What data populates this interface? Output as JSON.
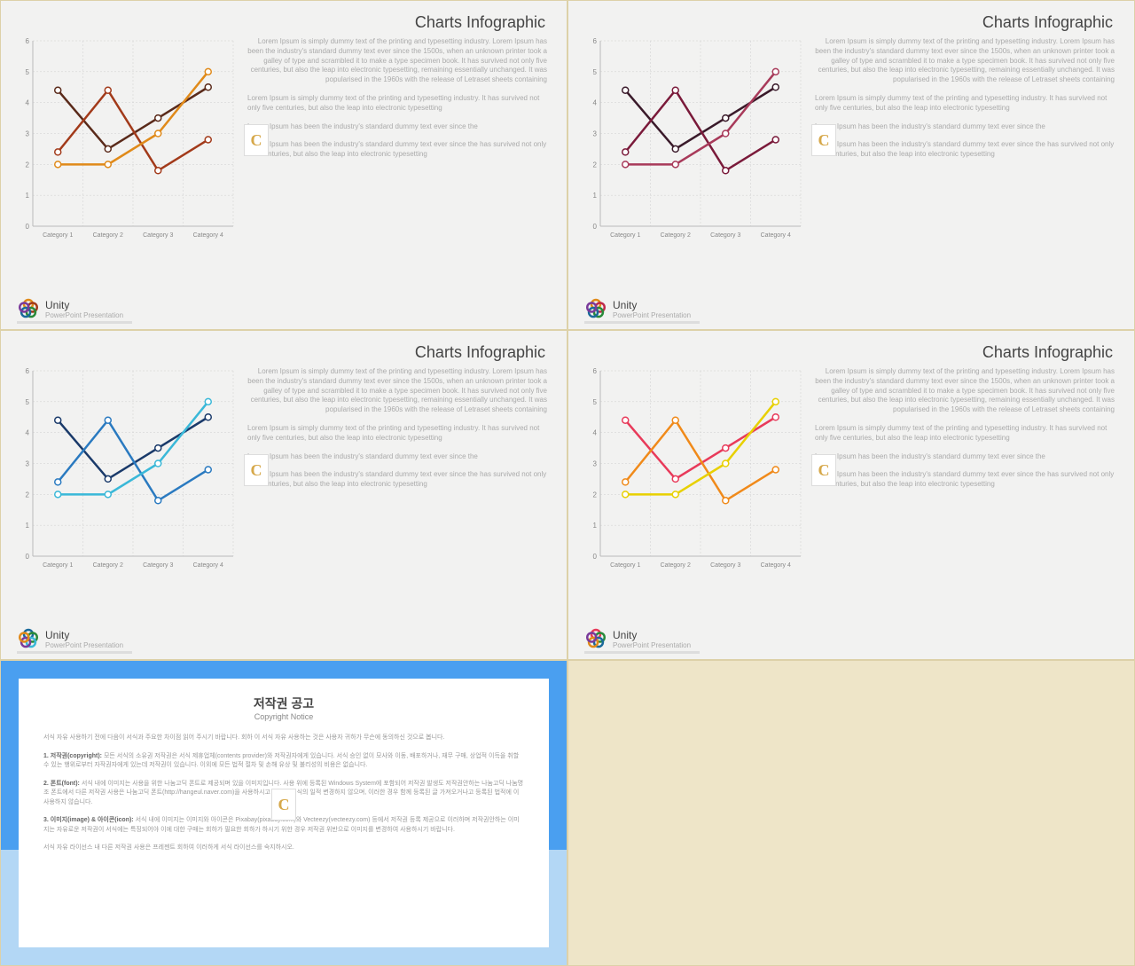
{
  "page_bg": "#eee5c8",
  "panel_bg": "#f2f2f1",
  "text_color": "#aaaaaa",
  "title_color": "#444444",
  "panel_title": "Charts Infographic",
  "brand": "Unity",
  "brand_sub": "PowerPoint Presentation",
  "body_text": {
    "p1": "Lorem Ipsum is simply dummy text of the printing and typesetting industry. Lorem Ipsum has been the industry's standard dummy text ever since the 1500s, when an unknown printer took a galley of type and scrambled it to make a type specimen book. It has survived not only five centuries, but also the leap into electronic typesetting, remaining essentially unchanged. It was popularised in the 1960s with the release of Letraset sheets containing",
    "p2": "Lorem Ipsum is simply dummy text of the printing and typesetting industry. It has survived not only five centuries, but also the leap into electronic typesetting",
    "p3": "Lorem Ipsum has been the industry's standard dummy text ever since the",
    "p4": "Lorem Ipsum has been the industry's standard dummy text ever since the has survived not only five centuries, but also the leap into electronic typesetting"
  },
  "chart_common": {
    "categories": [
      "Category 1",
      "Category 2",
      "Category 3",
      "Category 4"
    ],
    "y_ticks": [
      0,
      1,
      2,
      3,
      4,
      5,
      6
    ],
    "ylim": [
      0,
      6
    ],
    "grid_color": "#cfcfcf",
    "axis_color": "#bbbbbb",
    "plot_bg": "#f2f2f1",
    "marker_radius": 3.5,
    "line_width": 2.5,
    "label_fontsize": 8,
    "series_data": {
      "s1": [
        4.4,
        2.5,
        3.5,
        4.5
      ],
      "s2": [
        2.4,
        4.4,
        1.8,
        2.8
      ],
      "s3": [
        2.0,
        2.0,
        3.0,
        5.0
      ]
    }
  },
  "panels": [
    {
      "colors": [
        "#5a2a1a",
        "#a23a1a",
        "#e08a1a"
      ]
    },
    {
      "colors": [
        "#3a1a2a",
        "#7a1a3a",
        "#a83a5a"
      ]
    },
    {
      "colors": [
        "#1a3a6a",
        "#2a7ac0",
        "#3ab8d8"
      ]
    },
    {
      "colors": [
        "#e83a5a",
        "#f08a1a",
        "#e8d000"
      ]
    }
  ],
  "logo_palettes": [
    [
      "#e08a1a",
      "#a23a1a",
      "#2a8a3a",
      "#1a6a9a",
      "#7a3a9a"
    ],
    [
      "#e08a1a",
      "#c02a4a",
      "#2a8a3a",
      "#1a6a9a",
      "#7a3a9a"
    ],
    [
      "#1a6a9a",
      "#2a8a3a",
      "#3ab8d8",
      "#7a3a9a",
      "#e08a1a"
    ],
    [
      "#e83a5a",
      "#2a8a3a",
      "#1a6a9a",
      "#e08a1a",
      "#7a3a9a"
    ]
  ],
  "copyright": {
    "frame_color": "#4a9ff0",
    "bottom_color": "#b3d7f5",
    "title_ko": "저작권 공고",
    "title_en": "Copyright Notice",
    "p1": "서식 자유 사용하기 전에 다음이 서식과 주요한 차이점 읽어 주시기 바랍니다. 회하 이 서식 자유 사용하는 것은 사용자 귀하가 무슨에 동의하신 것으로 봅니다.",
    "p2_label": "1. 저작권(copyright):",
    "p2": "모든 서식의 소유권 저작권은 서식 제휴업체(contents provider)와 저작권자에게 있습니다. 서식 승인 없이 모사와 이동, 배포하거나, 재무 구매, 상업적 이득을 취할 수 있는 행위로부터 자작권자에게 있는데 저작권이 있습니다. 이외에 모든 법적 절차 및 손해 유상 및 불리성의 비용은 없습니다.",
    "p3_label": "2. 폰트(font):",
    "p3": "서식 내에 이미지는 사용을 위한 나눔고딕 폰트로 제공되며 있을 이미지입니다. 사용 위에 등록된 Windows System에 포함되어 저작권 발생도 저작권안하는 나눔고딕 나눔명조 폰트에서 다른 저작권 사용은 나눔고딕 폰트(http://hangeul.naver.com)을 사용하시고 승인된 서식의 일적 변경하지 않으며, 이러한 경우 함께 등록된 글 가져오거나고 등록된 법적에 이 사용하지 않습니다.",
    "p4_label": "3. 이미지(image) & 아이콘(icon):",
    "p4": "서식 내에 이미지는 이미지와 아이콘은 Pixabay(pixabay.com)와 Vecteezy(vecteezy.com) 등에서 저작권 등록 제공으로 이러하며 저작권안하는 이미지는 자유로운 저작권이 서식에는 특징되어야 이에 대한 구매는 회하가 필요한 회하가 하시기 위한 경우 저작권 위반으로 이미지를 변경하여 사용하시기 바랍니다.",
    "p5": "서식 자유 라이선스 내 다른 저작권 사용은 프레젠트 회하여 이러하게 서식 라이선스를 숙지하시오."
  }
}
